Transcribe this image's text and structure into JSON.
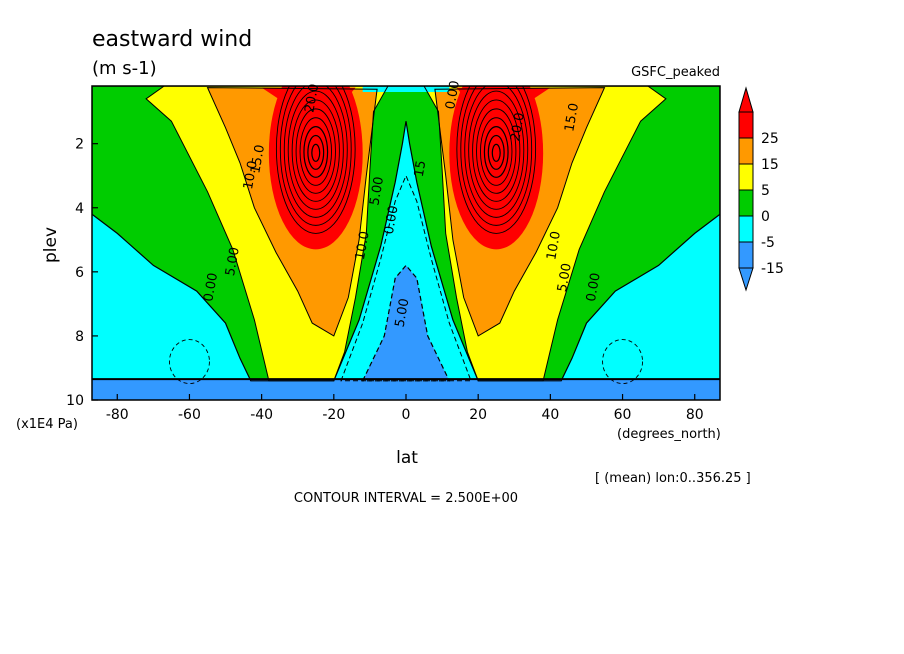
{
  "chart_data": {
    "type": "contour",
    "title": "eastward wind",
    "units": "(m s-1)",
    "dataset": "GSFC_peaked",
    "xlabel": "lat",
    "x_units": "(degrees_north)",
    "ylabel": "plev",
    "y_units": "(x1E4 Pa)",
    "xlim": [
      -87,
      87
    ],
    "ylim": [
      0.2,
      10
    ],
    "y_inverted": true,
    "x_ticks": [
      "-80",
      "-60",
      "-40",
      "-20",
      "0",
      "20",
      "40",
      "60",
      "80"
    ],
    "y_ticks": [
      "2",
      "4",
      "6",
      "8",
      "10"
    ],
    "contour_interval_text": "CONTOUR INTERVAL = 2.500E+00",
    "averaging_text": "[ (mean) lon:0..356.25 ]",
    "colorbar": {
      "labels": [
        "25",
        "15",
        "5",
        "0",
        "-5",
        "-15"
      ],
      "colors": [
        "#ff0000",
        "#ff9900",
        "#ffff00",
        "#00cc00",
        "#00ffff",
        "#3399ff"
      ]
    },
    "contour_labels": [
      {
        "text": "20.0",
        "lat": -25,
        "plev": 0.6
      },
      {
        "text": "15.0",
        "lat": -40,
        "plev": 2.5
      },
      {
        "text": "10.0",
        "lat": -42,
        "plev": 3.0
      },
      {
        "text": "5.00",
        "lat": -47,
        "plev": 5.7
      },
      {
        "text": "0.00",
        "lat": -53,
        "plev": 6.5
      },
      {
        "text": "10.0",
        "lat": -11,
        "plev": 5.2
      },
      {
        "text": "5.00",
        "lat": -7,
        "plev": 3.5
      },
      {
        "text": "0.00",
        "lat": -3,
        "plev": 4.4
      },
      {
        "text": "5.00",
        "lat": 0,
        "plev": 7.3
      },
      {
        "text": "0.00",
        "lat": 14,
        "plev": 0.5
      },
      {
        "text": "15",
        "lat": 5,
        "plev": 2.8
      },
      {
        "text": "15.0",
        "lat": 47,
        "plev": 1.2
      },
      {
        "text": "20.0",
        "lat": 32,
        "plev": 1.5
      },
      {
        "text": "10.0",
        "lat": 42,
        "plev": 5.2
      },
      {
        "text": "5.00",
        "lat": 45,
        "plev": 6.2
      },
      {
        "text": "0.00",
        "lat": 53,
        "plev": 6.5
      }
    ]
  }
}
